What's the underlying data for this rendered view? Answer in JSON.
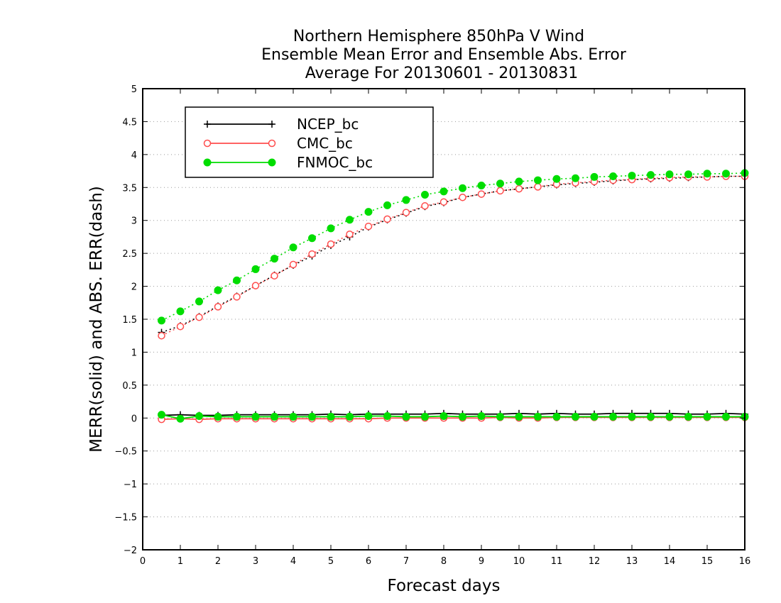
{
  "chart_data": {
    "type": "line",
    "title_lines": [
      "Northern Hemisphere 850hPa V Wind",
      "Ensemble Mean Error and Ensemble Abs. Error",
      "Average For 20130601 - 20130831"
    ],
    "xlabel": "Forecast days",
    "ylabel": "MERR(solid) and ABS. ERR(dash)",
    "xlim": [
      0,
      16
    ],
    "ylim": [
      -2,
      5
    ],
    "xticks": [
      0,
      1,
      2,
      3,
      4,
      5,
      6,
      7,
      8,
      9,
      10,
      11,
      12,
      13,
      14,
      15,
      16
    ],
    "xtick_labels": [
      "0",
      "1",
      "2",
      "3",
      "4",
      "5",
      "6",
      "7",
      "8",
      "9",
      "10",
      "11",
      "12",
      "13",
      "14",
      "15",
      "16"
    ],
    "yticks": [
      -2,
      -1.5,
      -1,
      -0.5,
      0,
      0.5,
      1,
      1.5,
      2,
      2.5,
      3,
      3.5,
      4,
      4.5,
      5
    ],
    "ytick_labels": [
      "−2",
      "−1.5",
      "−1",
      "−0.5",
      "0",
      "0.5",
      "1",
      "1.5",
      "2",
      "2.5",
      "3",
      "3.5",
      "4",
      "4.5",
      "5"
    ],
    "grid": "horizontal dotted",
    "legend_position": "top-left",
    "x": [
      0.5,
      1,
      1.5,
      2,
      2.5,
      3,
      3.5,
      4,
      4.5,
      5,
      5.5,
      6,
      6.5,
      7,
      7.5,
      8,
      8.5,
      9,
      9.5,
      10,
      10.5,
      11,
      11.5,
      12,
      12.5,
      13,
      13.5,
      14,
      14.5,
      15,
      15.5,
      16
    ],
    "series": [
      {
        "name": "NCEP_bc",
        "color": "#000000",
        "marker": "plus",
        "merr": [
          0.04,
          0.05,
          0.04,
          0.04,
          0.05,
          0.05,
          0.05,
          0.05,
          0.05,
          0.06,
          0.05,
          0.06,
          0.06,
          0.06,
          0.06,
          0.07,
          0.06,
          0.06,
          0.06,
          0.07,
          0.06,
          0.07,
          0.06,
          0.06,
          0.07,
          0.07,
          0.07,
          0.07,
          0.06,
          0.06,
          0.07,
          0.06
        ],
        "abs_err": [
          1.3,
          1.4,
          1.54,
          1.7,
          1.85,
          2.01,
          2.17,
          2.32,
          2.46,
          2.62,
          2.75,
          2.9,
          3.01,
          3.11,
          3.21,
          3.27,
          3.35,
          3.4,
          3.45,
          3.48,
          3.51,
          3.54,
          3.56,
          3.58,
          3.6,
          3.62,
          3.63,
          3.64,
          3.65,
          3.66,
          3.67,
          3.67
        ]
      },
      {
        "name": "CMC_bc",
        "color": "#ff4d4d",
        "marker": "open-circle",
        "merr": [
          -0.02,
          -0.01,
          -0.02,
          -0.01,
          -0.01,
          -0.01,
          -0.01,
          -0.01,
          -0.01,
          -0.01,
          -0.01,
          -0.01,
          0.0,
          0.0,
          0.0,
          0.0,
          0.0,
          0.0,
          0.01,
          0.0,
          0.0,
          0.01,
          0.01,
          0.01,
          0.01,
          0.01,
          0.01,
          0.01,
          0.01,
          0.01,
          0.01,
          0.01
        ],
        "abs_err": [
          1.25,
          1.39,
          1.53,
          1.69,
          1.84,
          2.01,
          2.16,
          2.33,
          2.49,
          2.64,
          2.79,
          2.91,
          3.02,
          3.12,
          3.22,
          3.28,
          3.35,
          3.4,
          3.45,
          3.48,
          3.51,
          3.55,
          3.57,
          3.59,
          3.61,
          3.62,
          3.64,
          3.65,
          3.66,
          3.66,
          3.67,
          3.67
        ]
      },
      {
        "name": "FNMOC_bc",
        "color": "#00dd00",
        "marker": "filled-circle",
        "merr": [
          0.05,
          -0.01,
          0.03,
          0.02,
          0.02,
          0.02,
          0.02,
          0.02,
          0.02,
          0.02,
          0.02,
          0.03,
          0.03,
          0.02,
          0.02,
          0.03,
          0.02,
          0.03,
          0.02,
          0.02,
          0.02,
          0.02,
          0.02,
          0.02,
          0.02,
          0.02,
          0.02,
          0.02,
          0.02,
          0.02,
          0.02,
          0.02
        ],
        "abs_err": [
          1.48,
          1.62,
          1.77,
          1.94,
          2.09,
          2.26,
          2.42,
          2.59,
          2.73,
          2.88,
          3.01,
          3.13,
          3.23,
          3.31,
          3.39,
          3.44,
          3.49,
          3.53,
          3.56,
          3.59,
          3.61,
          3.63,
          3.64,
          3.66,
          3.67,
          3.68,
          3.69,
          3.7,
          3.7,
          3.71,
          3.71,
          3.72
        ]
      }
    ]
  }
}
